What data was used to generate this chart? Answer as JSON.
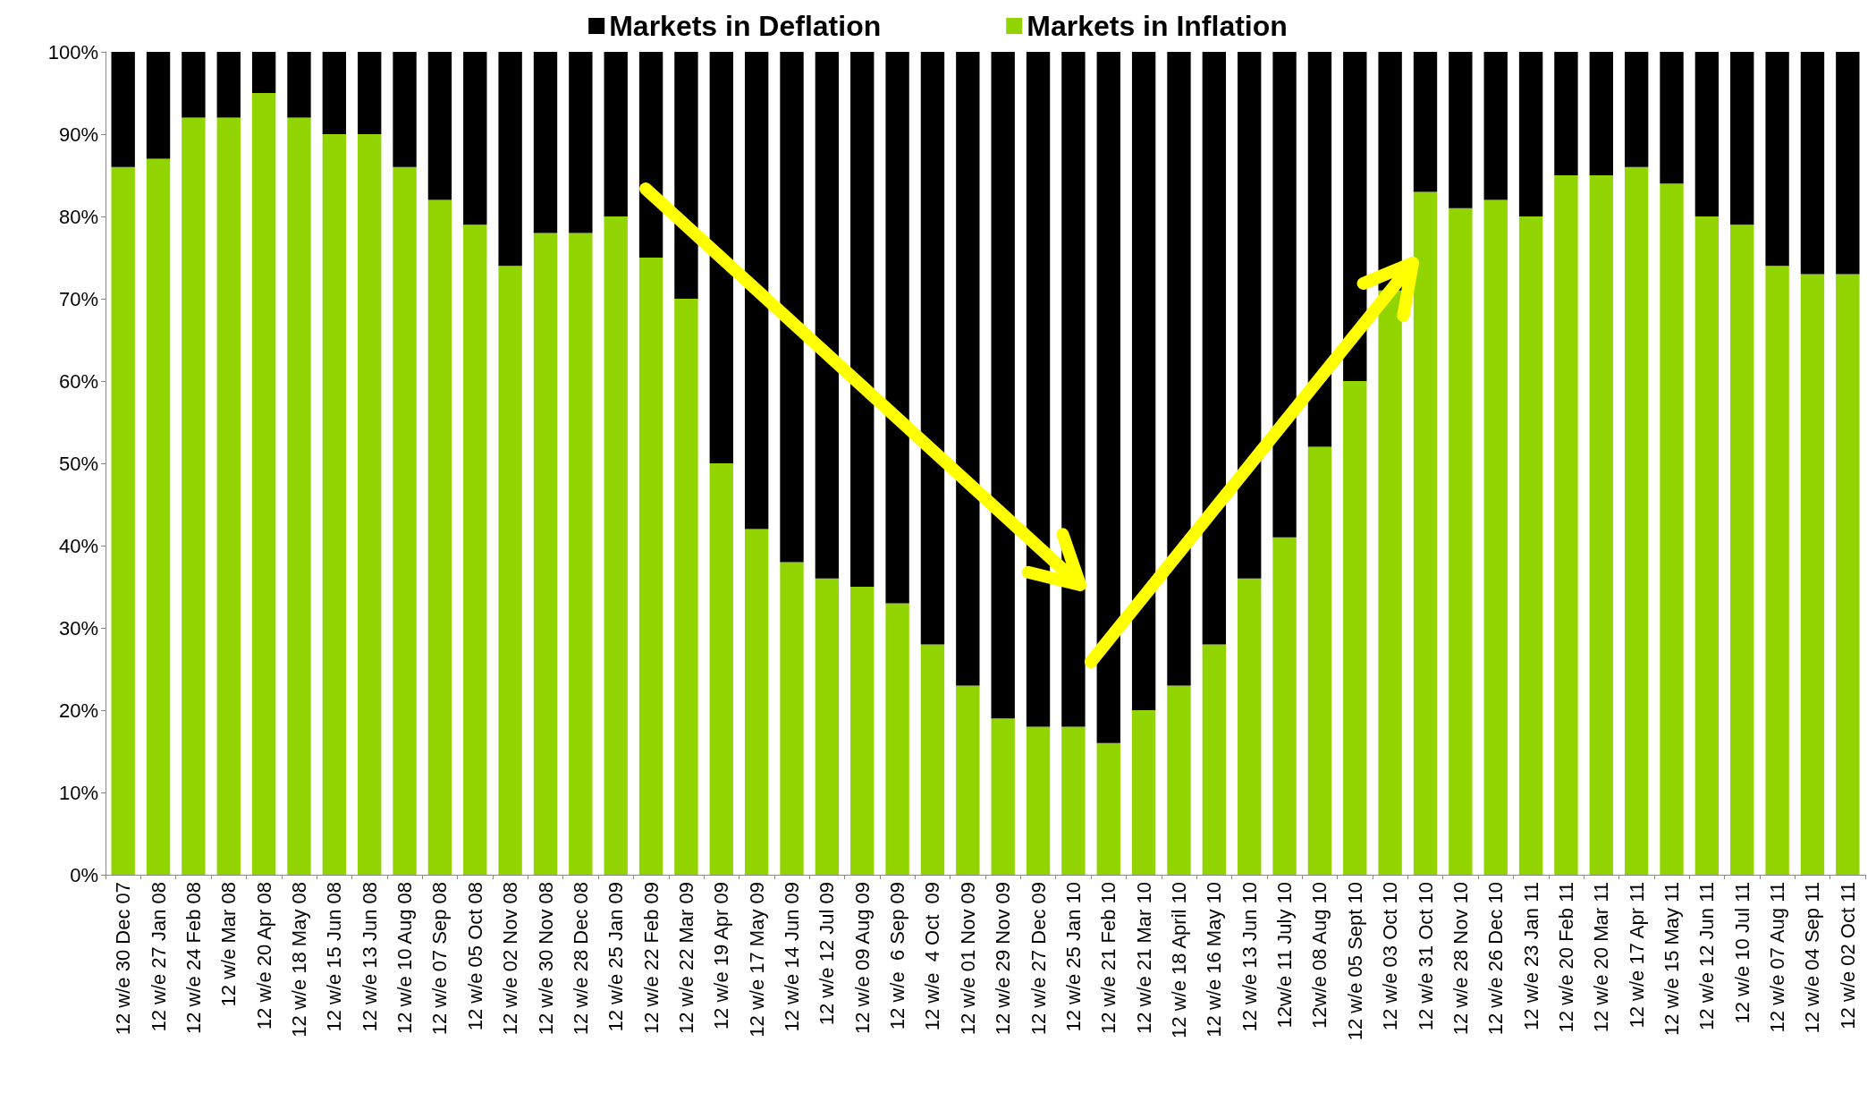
{
  "chart_data": {
    "type": "bar",
    "stacked": true,
    "legend": "top",
    "categories": [
      "12 w/e 30 Dec 07",
      "12 w/e 27 Jan 08",
      "12 w/e 24 Feb 08",
      "12 w/e Mar 08",
      "12 w/e 20 Apr 08",
      "12 w/e 18 May 08",
      "12 w/e 15 Jun 08",
      "12 w/e 13 Jun 08",
      "12 w/e 10 Aug 08",
      "12 w/e 07 Sep 08",
      "12 w/e 05 Oct 08",
      "12 w/e 02 Nov 08",
      "12 w/e 30 Nov 08",
      "12 w/e 28 Dec 08",
      "12 w/e 25 Jan 09",
      "12 w/e 22 Feb 09",
      "12 w/e 22 Mar 09",
      "12 w/e 19 Apr 09",
      "12 w/e 17 May 09",
      "12 w/e 14 Jun 09",
      "12 w/e 12 Jul 09",
      "12 w/e 09 Aug 09",
      "12 w/e  6 Sep 09",
      "12 w/e  4 Oct  09",
      "12 w/e 01 Nov 09",
      "12 w/e 29 Nov 09",
      "12 w/e 27 Dec 09",
      "12 w/e 25 Jan 10",
      "12 w/e 21 Feb 10",
      "12 w/e 21 Mar 10",
      "12 w/e 18 April 10",
      "12 w/e 16 May 10",
      "12 w/e 13 Jun 10",
      "12w/e 11 July 10",
      "12w/e 08 Aug 10",
      "12 w/e 05 Sept 10",
      "12 w/e 03 Oct 10",
      "12 w/e 31 Oct 10",
      "12 w/e 28 Nov 10",
      "12 w/e 26 Dec 10",
      "12 w/e 23 Jan 11",
      "12 w/e 20 Feb 11",
      "12 w/e 20 Mar 11",
      "12 w/e 17 Apr 11",
      "12 w/e 15 May 11",
      "12 w/e 12 Jun 11",
      "12 w/e 10 Jul 11",
      "12 w/e 07 Aug 11",
      "12 w/e 04 Sep 11",
      "12 w/e 02 Oct 11"
    ],
    "series": [
      {
        "name": "Markets in Inflation",
        "color": "#92d400",
        "values": [
          86,
          87,
          92,
          92,
          95,
          92,
          90,
          90,
          86,
          82,
          79,
          74,
          78,
          78,
          80,
          75,
          70,
          50,
          42,
          38,
          36,
          35,
          33,
          28,
          23,
          19,
          18,
          18,
          16,
          20,
          23,
          28,
          36,
          41,
          52,
          60,
          71,
          83,
          81,
          82,
          80,
          85,
          85,
          86,
          84,
          80,
          79,
          74,
          73,
          73
        ]
      },
      {
        "name": "Markets in Deflation",
        "color": "#000000",
        "values": [
          14,
          13,
          8,
          8,
          5,
          8,
          10,
          10,
          14,
          18,
          21,
          26,
          22,
          22,
          20,
          25,
          30,
          50,
          58,
          62,
          64,
          65,
          67,
          72,
          77,
          81,
          82,
          82,
          84,
          80,
          77,
          72,
          64,
          59,
          48,
          40,
          29,
          17,
          19,
          18,
          20,
          15,
          15,
          14,
          16,
          20,
          21,
          26,
          27,
          27
        ]
      }
    ],
    "ylim": [
      0,
      100
    ],
    "yticks": [
      {
        "value": 0,
        "label": "0%"
      },
      {
        "value": 10,
        "label": "10%"
      },
      {
        "value": 20,
        "label": "20%"
      },
      {
        "value": 30,
        "label": "30%"
      },
      {
        "value": 40,
        "label": "40%"
      },
      {
        "value": 50,
        "label": "50%"
      },
      {
        "value": 60,
        "label": "60%"
      },
      {
        "value": 70,
        "label": "70%"
      },
      {
        "value": 80,
        "label": "80%"
      },
      {
        "value": 90,
        "label": "90%"
      },
      {
        "value": 100,
        "label": "100%"
      }
    ],
    "grid": false
  }
}
